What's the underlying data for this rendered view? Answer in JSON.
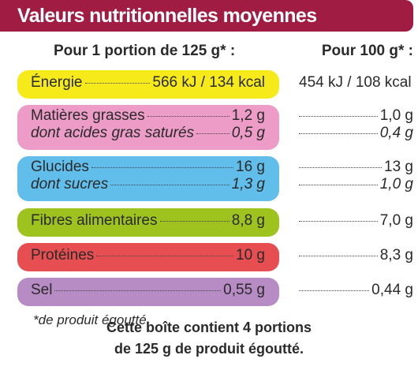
{
  "title": "Valeurs nutritionnelles moyennes",
  "header": {
    "per_portion": "Pour 1 portion de 125 g* :",
    "per_100g": "Pour 100 g* :"
  },
  "colors": {
    "title_bg": "#a11c43",
    "energie": "#f6ea1a",
    "matieres": "#ec9cc6",
    "glucides": "#61bdea",
    "fibres": "#9ec31f",
    "proteines": "#e64e51",
    "sel": "#b78cc4"
  },
  "rows": {
    "energie": {
      "label": "Énergie",
      "portion": "566 kJ / 134 kcal",
      "per100": "454 kJ / 108 kcal"
    },
    "matieres": {
      "label": "Matières grasses",
      "portion": "1,2 g",
      "per100": "1,0 g"
    },
    "satures": {
      "label": "dont acides gras saturés",
      "portion": "0,5 g",
      "per100": "0,4 g"
    },
    "glucides": {
      "label": "Glucides",
      "portion": "16 g",
      "per100": "13 g"
    },
    "sucres": {
      "label": "dont sucres",
      "portion": "1,3 g",
      "per100": "1,0 g"
    },
    "fibres": {
      "label": "Fibres alimentaires",
      "portion": "8,8 g",
      "per100": "7,0 g"
    },
    "proteines": {
      "label": "Protéines",
      "portion": "10 g",
      "per100": "8,3 g"
    },
    "sel": {
      "label": "Sel",
      "portion": "0,55 g",
      "per100": "0,44 g"
    }
  },
  "footnote": "*de produit égoutté.",
  "box_info": {
    "line1": "Cette boîte contient 4 portions",
    "line2": "de 125 g de produit égoutté."
  }
}
